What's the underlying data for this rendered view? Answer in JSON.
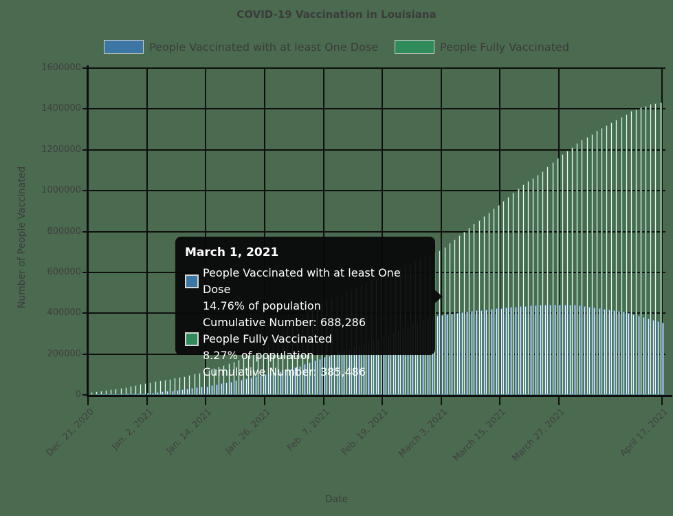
{
  "title": "COVID-19 Vaccination in Louisiana",
  "colors": {
    "background": "#4b6b51",
    "text": "#3b3b3b",
    "tick_text": "#3f3f3f",
    "grid": "#0e0e0e",
    "legend_blue": "#3b76a4",
    "legend_green": "#2f8c5a",
    "bar_fill": "#f4f3ef",
    "bar_edge_green": "#4f8a6a",
    "bar_edge_blue": "#5b88b5"
  },
  "legend": [
    {
      "label": "People Vaccinated with at least One Dose",
      "color": "#3b76a4"
    },
    {
      "label": "People Fully Vaccinated",
      "color": "#2f8c5a"
    }
  ],
  "tooltip": {
    "date": "March 1, 2021",
    "entries": [
      {
        "label": "People Vaccinated with at least One Dose",
        "percent": "14.76% of population",
        "cumulative": "Cumulative Number: 688,286",
        "color": "#3b76a4"
      },
      {
        "label": "People Fully Vaccinated",
        "percent": "8.27% of population",
        "cumulative": "Cumulative Number: 385,486",
        "color": "#2f8c5a"
      }
    ]
  },
  "chart_data": {
    "type": "bar",
    "title": "COVID-19 Vaccination in Louisiana",
    "xlabel": "Date",
    "ylabel": "Number of People Vaccinated",
    "ylim": [
      0,
      1600000
    ],
    "ytick_values": [
      0,
      200000,
      400000,
      600000,
      800000,
      1000000,
      1200000,
      1400000,
      1600000
    ],
    "ytick_labels": [
      "0",
      "200000",
      "400000",
      "600000",
      "800000",
      "1000000",
      "1200000",
      "1400000",
      "1600000"
    ],
    "xticks": [
      {
        "day": 0,
        "label": "Dec. 21, 2020"
      },
      {
        "day": 12,
        "label": "Jan. 2, 2021"
      },
      {
        "day": 24,
        "label": "Jan. 14, 2021"
      },
      {
        "day": 36,
        "label": "Jan. 26, 2021"
      },
      {
        "day": 48,
        "label": "Feb. 7, 2021"
      },
      {
        "day": 60,
        "label": "Feb. 19, 2021"
      },
      {
        "day": 72,
        "label": "March 3, 2021"
      },
      {
        "day": 84,
        "label": "March 15, 2021"
      },
      {
        "day": 96,
        "label": "March 27, 2021"
      },
      {
        "day": 117,
        "label": "April 17, 2021"
      }
    ],
    "x_span_days": 117,
    "grid": true,
    "legend_position": "top",
    "note": "Daily cumulative bars from Dec 22, 2020 to April 17, 2021; values below are keypoints read from the rendered bars ([day offset from Dec 21, value]); tooltip gives exact values for March 1, 2021. Taller series is drawn with green bar edges, shorter with blue edges.",
    "series": [
      {
        "name": "People Vaccinated with at least One Dose",
        "edge_color": "#4f8a6a",
        "keypoints": [
          [
            1,
            12000
          ],
          [
            4,
            22000
          ],
          [
            8,
            38000
          ],
          [
            12,
            58000
          ],
          [
            16,
            74000
          ],
          [
            20,
            92000
          ],
          [
            24,
            115000
          ],
          [
            28,
            145000
          ],
          [
            31,
            172000
          ],
          [
            34,
            205000
          ],
          [
            36,
            235000
          ],
          [
            39,
            290000
          ],
          [
            41,
            340000
          ],
          [
            44,
            390000
          ],
          [
            48,
            448000
          ],
          [
            54,
            520000
          ],
          [
            60,
            580000
          ],
          [
            65,
            632000
          ],
          [
            70,
            688286
          ],
          [
            72,
            706000
          ],
          [
            77,
            800000
          ],
          [
            84,
            930000
          ],
          [
            89,
            1030000
          ],
          [
            93,
            1095000
          ],
          [
            96,
            1160000
          ],
          [
            101,
            1250000
          ],
          [
            106,
            1320000
          ],
          [
            111,
            1390000
          ],
          [
            115,
            1424000
          ],
          [
            117,
            1432000
          ]
        ]
      },
      {
        "name": "People Fully Vaccinated",
        "edge_color": "#5b88b5",
        "keypoints": [
          [
            1,
            1500
          ],
          [
            6,
            3500
          ],
          [
            12,
            9000
          ],
          [
            18,
            24000
          ],
          [
            24,
            42000
          ],
          [
            30,
            70000
          ],
          [
            36,
            100000
          ],
          [
            41,
            126000
          ],
          [
            48,
            185000
          ],
          [
            54,
            235000
          ],
          [
            60,
            285000
          ],
          [
            65,
            336000
          ],
          [
            70,
            385486
          ],
          [
            74,
            396000
          ],
          [
            80,
            416000
          ],
          [
            86,
            430000
          ],
          [
            92,
            440000
          ],
          [
            98,
            442000
          ],
          [
            101,
            436000
          ],
          [
            105,
            421000
          ],
          [
            109,
            406000
          ],
          [
            113,
            382000
          ],
          [
            117,
            354000
          ]
        ]
      }
    ],
    "highlighted_point": {
      "date": "March 1, 2021",
      "one_dose_cumulative": 688286,
      "one_dose_percent": 14.76,
      "fully_cumulative": 385486,
      "fully_percent": 8.27
    }
  }
}
